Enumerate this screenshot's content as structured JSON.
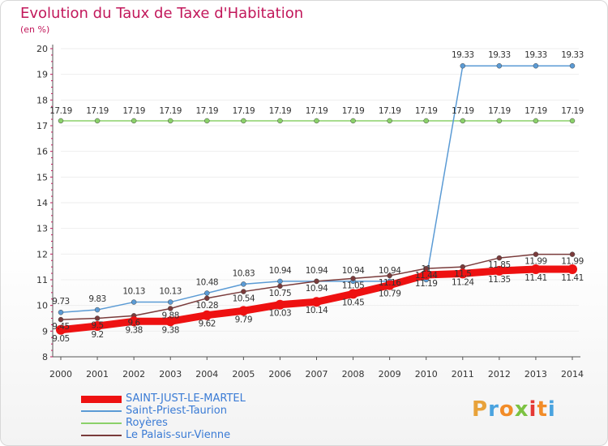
{
  "header": {
    "title": "Evolution du Taux de Taxe d'Habitation",
    "subtitle": "(en %)"
  },
  "logo": {
    "letters": [
      "P",
      "r",
      "o",
      "x",
      "i",
      "t",
      "i"
    ],
    "colors": [
      "#e8a23a",
      "#4aa3df",
      "#f28c28",
      "#7cc242",
      "#e53935",
      "#f28c28",
      "#4aa3df"
    ]
  },
  "colors": {
    "title": "#c2185b",
    "axis": "#555555",
    "tick_marks": "#c2185b",
    "grid": "#eeeeee"
  },
  "chart_data": {
    "type": "line",
    "title": "Evolution du Taux de Taxe d'Habitation",
    "subtitle": "(en %)",
    "x": [
      2000,
      2001,
      2002,
      2003,
      2004,
      2005,
      2006,
      2007,
      2008,
      2009,
      2010,
      2011,
      2012,
      2013,
      2014
    ],
    "ylim": [
      8,
      20
    ],
    "y_ticks": [
      8,
      9,
      10,
      11,
      12,
      13,
      14,
      15,
      16,
      17,
      18,
      19,
      20
    ],
    "legend_position": "bottom-left",
    "series": [
      {
        "name": "SAINT-JUST-LE-MARTEL",
        "color": "#ee1111",
        "values": [
          9.05,
          9.2,
          9.38,
          9.38,
          9.62,
          9.79,
          10.03,
          10.14,
          10.45,
          10.79,
          11.19,
          11.24,
          11.35,
          11.41,
          11.41
        ],
        "labels": [
          "9.05",
          "9.2",
          "9.38",
          "9.38",
          "9.62",
          "9.79",
          "10.03",
          "10.14",
          "10.45",
          "10.79",
          "11.19",
          "11.24",
          "11.35",
          "11.41",
          "11.41"
        ]
      },
      {
        "name": "Saint-Priest-Taurion",
        "color": "#5b9bd5",
        "values": [
          9.73,
          9.83,
          10.13,
          10.13,
          10.48,
          10.83,
          10.94,
          10.94,
          10.94,
          10.94,
          11.0,
          19.33,
          19.33,
          19.33,
          19.33
        ],
        "labels": [
          "9.73",
          "9.83",
          "10.13",
          "10.13",
          "10.48",
          "10.83",
          "10.94",
          "10.94",
          "10.94",
          "10.94",
          "11",
          "19.33",
          "19.33",
          "19.33",
          "19.33"
        ]
      },
      {
        "name": "Royères",
        "color": "#8bd16a",
        "values": [
          17.19,
          17.19,
          17.19,
          17.19,
          17.19,
          17.19,
          17.19,
          17.19,
          17.19,
          17.19,
          17.19,
          17.19,
          17.19,
          17.19,
          17.19
        ],
        "labels": [
          "17.19",
          "17.19",
          "17.19",
          "17.19",
          "17.19",
          "17.19",
          "17.19",
          "17.19",
          "17.19",
          "17.19",
          "17.19",
          "17.19",
          "17.19",
          "17.19",
          "17.19"
        ]
      },
      {
        "name": "Le Palais-sur-Vienne",
        "color": "#7a3b3b",
        "values": [
          9.45,
          9.5,
          9.6,
          9.88,
          10.28,
          10.54,
          10.75,
          10.94,
          11.05,
          11.16,
          11.44,
          11.5,
          11.85,
          11.99,
          11.99
        ],
        "labels": [
          "9.45",
          "9.5",
          "9.6",
          "9.88",
          "10.28",
          "10.54",
          "10.75",
          "10.94",
          "11.05",
          "11.16",
          "11.44",
          "11.5",
          "11.85",
          "11.99",
          "11.99"
        ]
      }
    ]
  }
}
